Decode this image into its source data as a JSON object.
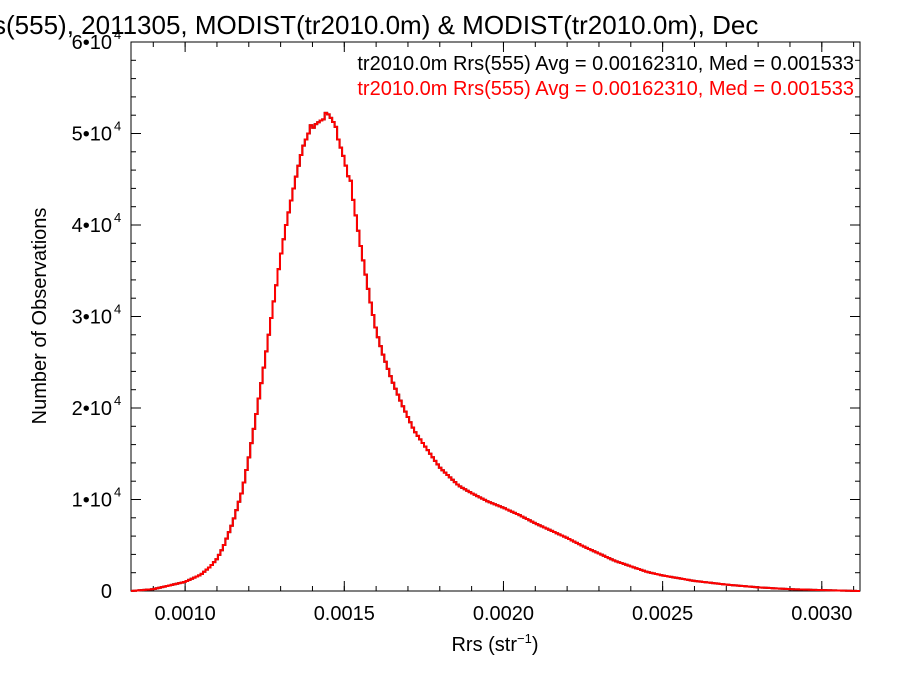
{
  "chart_data": {
    "type": "line",
    "title": "s(555), 2011305, MODIST(tr2010.0m) & MODIST(tr2010.0m), Dec",
    "xlabel": {
      "base": "Rrs (str",
      "sup": "−1",
      "tail": ")"
    },
    "ylabel": "Number of Observations",
    "xlim": [
      0.00083,
      0.00312
    ],
    "ylim": [
      0,
      60000
    ],
    "grid": false,
    "legend_position": "top-right",
    "x_ticks": [
      {
        "value": 0.001,
        "label": "0.0010"
      },
      {
        "value": 0.0015,
        "label": "0.0015"
      },
      {
        "value": 0.002,
        "label": "0.0020"
      },
      {
        "value": 0.0025,
        "label": "0.0025"
      },
      {
        "value": 0.003,
        "label": "0.0030"
      }
    ],
    "y_ticks": [
      {
        "value": 0,
        "label": "0",
        "exp": ""
      },
      {
        "value": 10000,
        "label": "1•10",
        "exp": "4"
      },
      {
        "value": 20000,
        "label": "2•10",
        "exp": "4"
      },
      {
        "value": 30000,
        "label": "3•10",
        "exp": "4"
      },
      {
        "value": 40000,
        "label": "4•10",
        "exp": "4"
      },
      {
        "value": 50000,
        "label": "5•10",
        "exp": "4"
      },
      {
        "value": 60000,
        "label": "6•10",
        "exp": "4"
      }
    ],
    "series": [
      {
        "name": "tr2010.0m Rrs(555) Avg = 0.00162310, Med = 0.001533",
        "color": "#000000",
        "x": [
          0.00083,
          0.0009,
          0.00095,
          0.001,
          0.00105,
          0.00108,
          0.0011,
          0.00112,
          0.00115,
          0.00118,
          0.0012,
          0.00122,
          0.00125,
          0.00128,
          0.0013,
          0.00132,
          0.00135,
          0.00137,
          0.00139,
          0.00141,
          0.00143,
          0.00144,
          0.00145,
          0.00146,
          0.00147,
          0.00148,
          0.0015,
          0.00152,
          0.00155,
          0.00158,
          0.0016,
          0.00162,
          0.00165,
          0.00168,
          0.0017,
          0.00172,
          0.00175,
          0.00178,
          0.0018,
          0.00183,
          0.00186,
          0.0019,
          0.00195,
          0.002,
          0.00205,
          0.0021,
          0.00215,
          0.0022,
          0.00225,
          0.0023,
          0.00235,
          0.0024,
          0.00245,
          0.0025,
          0.0026,
          0.0027,
          0.0028,
          0.0029,
          0.003,
          0.00312
        ],
        "y": [
          0,
          200,
          600,
          1000,
          1800,
          2700,
          3500,
          4800,
          7500,
          11000,
          14500,
          18500,
          25000,
          32000,
          36500,
          40500,
          45500,
          48500,
          50200,
          51300,
          51800,
          51900,
          51700,
          51200,
          50600,
          49800,
          47500,
          44500,
          38000,
          32000,
          28500,
          26000,
          23000,
          20500,
          19000,
          17500,
          16000,
          14500,
          13500,
          12500,
          11500,
          10700,
          9800,
          9100,
          8300,
          7400,
          6600,
          5800,
          4900,
          4100,
          3300,
          2700,
          2100,
          1700,
          1100,
          700,
          400,
          200,
          100,
          0
        ]
      },
      {
        "name": "tr2010.0m Rrs(555) Avg = 0.00162310, Med = 0.001533",
        "color": "#ff0000"
      }
    ]
  }
}
